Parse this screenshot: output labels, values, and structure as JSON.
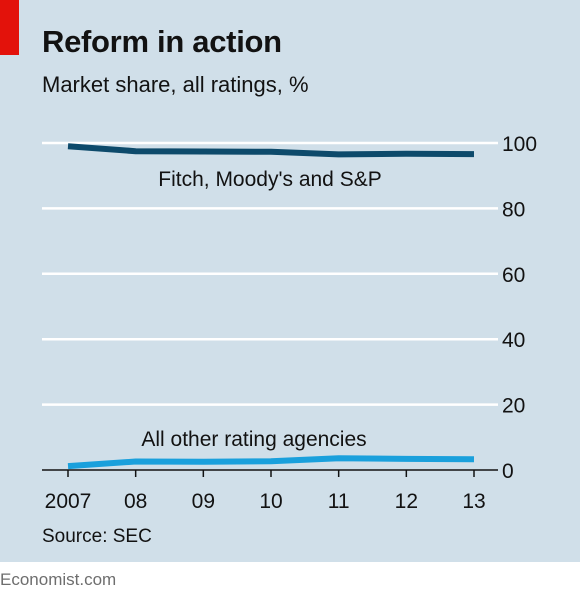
{
  "chart_data": {
    "type": "line",
    "title": "Reform in action",
    "subtitle": "Market share, all ratings, %",
    "source": "Source: SEC",
    "credit": "Economist.com",
    "x": [
      2007,
      2008,
      2009,
      2010,
      2011,
      2012,
      2013
    ],
    "x_tick_labels": [
      "2007",
      "08",
      "09",
      "10",
      "11",
      "12",
      "13"
    ],
    "ylim": [
      0,
      100
    ],
    "y_ticks": [
      0,
      20,
      40,
      60,
      80,
      100
    ],
    "y_tick_labels": [
      "0",
      "20",
      "40",
      "60",
      "80",
      "100"
    ],
    "y_axis_side": "right",
    "grid": true,
    "series": [
      {
        "name": "Fitch, Moody's and S&P",
        "color": "#0d4a6b",
        "values": [
          99.0,
          97.5,
          97.4,
          97.3,
          96.5,
          96.7,
          96.6
        ]
      },
      {
        "name": "All other rating agencies",
        "color": "#1aa0dc",
        "values": [
          1.2,
          2.6,
          2.5,
          2.7,
          3.6,
          3.4,
          3.3
        ]
      }
    ]
  }
}
